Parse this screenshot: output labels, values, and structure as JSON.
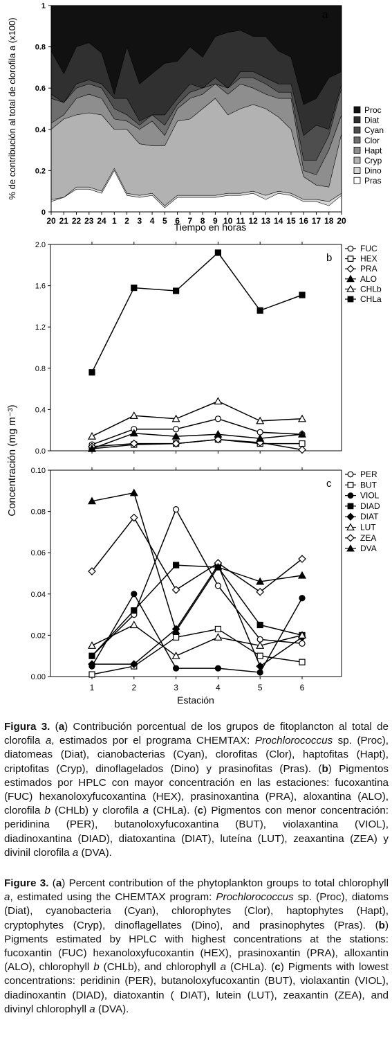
{
  "chart_data": [
    {
      "id": "a",
      "type": "area",
      "panel_label": "a",
      "xlabel": "Tiempo en horas",
      "ylabel": "% de contribución al total de clorofila a (x100)",
      "x_ticks": [
        "20",
        "21",
        "22",
        "23",
        "24",
        "1",
        "2",
        "3",
        "4",
        "5",
        "6",
        "7",
        "8",
        "9",
        "10",
        "11",
        "12",
        "13",
        "14",
        "15",
        "16",
        "17",
        "18",
        "20"
      ],
      "y_ticks": [
        "0",
        "0.2",
        "0.4",
        "0.6",
        "0.8",
        "1"
      ],
      "ylim": [
        0,
        1
      ],
      "legend": [
        "Proc",
        "Diat",
        "Cyan",
        "Clor",
        "Hapt",
        "Cryp",
        "Dino",
        "Pras"
      ],
      "colors": [
        "#111111",
        "#303030",
        "#4e4e4e",
        "#6e6e6e",
        "#8e8e8e",
        "#b2b2b2",
        "#d6d6d6",
        "#ffffff"
      ],
      "cumulative_upper": {
        "Pras": [
          0.05,
          0.07,
          0.11,
          0.11,
          0.09,
          0.2,
          0.08,
          0.07,
          0.08,
          0.02,
          0.07,
          0.07,
          0.07,
          0.07,
          0.08,
          0.08,
          0.09,
          0.06,
          0.09,
          0.08,
          0.05,
          0.05,
          0.03,
          0.08
        ],
        "Dino": [
          0.06,
          0.07,
          0.12,
          0.12,
          0.1,
          0.21,
          0.09,
          0.08,
          0.09,
          0.03,
          0.08,
          0.08,
          0.08,
          0.08,
          0.09,
          0.09,
          0.1,
          0.08,
          0.1,
          0.09,
          0.06,
          0.06,
          0.05,
          0.09
        ],
        "Cryp": [
          0.4,
          0.45,
          0.47,
          0.48,
          0.47,
          0.4,
          0.4,
          0.33,
          0.32,
          0.32,
          0.44,
          0.45,
          0.5,
          0.55,
          0.47,
          0.5,
          0.52,
          0.5,
          0.46,
          0.4,
          0.17,
          0.13,
          0.12,
          0.38
        ],
        "Hapt": [
          0.43,
          0.47,
          0.55,
          0.57,
          0.55,
          0.45,
          0.44,
          0.4,
          0.44,
          0.37,
          0.5,
          0.55,
          0.57,
          0.62,
          0.57,
          0.62,
          0.6,
          0.57,
          0.55,
          0.55,
          0.2,
          0.18,
          0.3,
          0.47
        ],
        "Clor": [
          0.55,
          0.53,
          0.6,
          0.62,
          0.6,
          0.5,
          0.47,
          0.42,
          0.47,
          0.42,
          0.52,
          0.58,
          0.6,
          0.62,
          0.6,
          0.65,
          0.65,
          0.62,
          0.58,
          0.58,
          0.25,
          0.25,
          0.37,
          0.6
        ],
        "Cyan": [
          0.57,
          0.53,
          0.62,
          0.64,
          0.62,
          0.55,
          0.55,
          0.44,
          0.47,
          0.47,
          0.55,
          0.62,
          0.6,
          0.65,
          0.6,
          0.68,
          0.68,
          0.65,
          0.62,
          0.62,
          0.37,
          0.42,
          0.4,
          0.62
        ],
        "Diat": [
          0.78,
          0.67,
          0.8,
          0.82,
          0.77,
          0.57,
          0.8,
          0.62,
          0.67,
          0.72,
          0.73,
          0.8,
          0.75,
          0.85,
          0.87,
          0.88,
          0.85,
          0.85,
          0.78,
          0.75,
          0.52,
          0.55,
          0.65,
          0.68
        ],
        "Proc": [
          1,
          1,
          1,
          1,
          1,
          1,
          1,
          1,
          1,
          1,
          1,
          1,
          1,
          1,
          1,
          1,
          1,
          1,
          1,
          1,
          1,
          1,
          1,
          1
        ]
      }
    },
    {
      "id": "b",
      "type": "line",
      "panel_label": "b",
      "x": [
        1,
        2,
        3,
        4,
        5,
        6
      ],
      "ylim": [
        0,
        2.0
      ],
      "y_ticks": [
        "0.0",
        "0.4",
        "0.8",
        "1.2",
        "1.6",
        "2.0"
      ],
      "series": [
        {
          "name": "FUC",
          "marker": "circle-open",
          "values": [
            0.06,
            0.21,
            0.21,
            0.31,
            0.18,
            0.16
          ]
        },
        {
          "name": "HEX",
          "marker": "square-open",
          "values": [
            0.02,
            0.06,
            0.07,
            0.11,
            0.07,
            0.07
          ]
        },
        {
          "name": "PRA",
          "marker": "diamond-open",
          "values": [
            0.04,
            0.07,
            0.07,
            0.11,
            0.08,
            0.01
          ]
        },
        {
          "name": "ALO",
          "marker": "triangle-filled",
          "values": [
            0.02,
            0.17,
            0.14,
            0.16,
            0.12,
            0.16
          ]
        },
        {
          "name": "CHLb",
          "marker": "triangle-open",
          "values": [
            0.14,
            0.34,
            0.31,
            0.48,
            0.29,
            0.31
          ]
        },
        {
          "name": "CHLa",
          "marker": "square-filled",
          "values": [
            0.76,
            1.58,
            1.55,
            1.92,
            1.36,
            1.51
          ]
        }
      ]
    },
    {
      "id": "c",
      "type": "line",
      "panel_label": "c",
      "x": [
        1,
        2,
        3,
        4,
        5,
        6
      ],
      "xlabel": "Estación",
      "ylim": [
        0,
        0.1
      ],
      "y_ticks": [
        "0.00",
        "0.02",
        "0.04",
        "0.06",
        "0.08",
        "0.10"
      ],
      "series": [
        {
          "name": "PER",
          "marker": "circle-open",
          "values": [
            0.01,
            0.03,
            0.081,
            0.044,
            0.018,
            0.016
          ]
        },
        {
          "name": "BUT",
          "marker": "square-open",
          "values": [
            0.001,
            0.005,
            0.019,
            0.023,
            0.01,
            0.007
          ]
        },
        {
          "name": "VIOL",
          "marker": "circle-filled",
          "values": [
            0.005,
            0.04,
            0.004,
            0.004,
            0.002,
            0.038
          ]
        },
        {
          "name": "DIAD",
          "marker": "square-filled",
          "values": [
            0.01,
            0.032,
            0.054,
            0.053,
            0.025,
            0.02
          ]
        },
        {
          "name": "DIAT",
          "marker": "diamond-filled",
          "values": [
            0.006,
            0.006,
            0.023,
            0.054,
            0.005,
            0.019
          ]
        },
        {
          "name": "LUT",
          "marker": "triangle-open",
          "values": [
            0.015,
            0.025,
            0.01,
            0.019,
            0.015,
            0.02
          ]
        },
        {
          "name": "ZEA",
          "marker": "diamond-open",
          "values": [
            0.051,
            0.077,
            0.042,
            0.055,
            0.041,
            0.057
          ]
        },
        {
          "name": "DVA",
          "marker": "triangle-filled",
          "values": [
            0.085,
            0.089,
            0.022,
            0.053,
            0.046,
            0.049
          ]
        }
      ]
    }
  ],
  "shared_ylabel": "Concentración (mg m⁻³)",
  "caption_es": {
    "fig": "Figura 3.",
    "a": "a",
    "b": "b",
    "c": "c",
    "t1": " Contribución porcentual de los grupos de fitoplancton al total de clorofila ",
    "t1i": "a",
    "t2": ", estimados por el programa CHEMTAX: ",
    "t2i": "Prochlorococcus",
    "t3": " sp. (Proc), diatomeas (Diat), cianobacterias (Cyan), clorofitas (Clor), haptofitas (Hapt), criptofitas (Cryp), dinoflagelados (Dino) y prasinofitas (Pras). ",
    "t4": " Pigmentos estimados por HPLC con mayor concentración en las estaciones: fucoxantina (FUC) hexanoloxyfucoxantina (HEX), prasinoxantina (PRA), aloxantina (ALO), clorofila ",
    "t4i": "b",
    "t5": " (CHLb) y clorofila ",
    "t5i": "a",
    "t6": " (CHLa). ",
    "t7": " Pigmentos con menor concentración: peridinina (PER), butanoloxyfucoxantina (BUT), violaxantina (VIOL), diadinoxantina (DIAD), diatoxantina (DIAT), luteína (LUT), zeaxantina (ZEA) y divinil clorofila ",
    "t7i": "a",
    "t8": " (DVA)."
  },
  "caption_en": {
    "fig": "Figure 3.",
    "a": "a",
    "b": "b",
    "c": "c",
    "t1": " Percent contribution of the phytoplankton groups to total chlorophyll ",
    "t1i": "a",
    "t2": ", estimated using the CHEMTAX program: ",
    "t2i": "Prochlorococcus",
    "t3": " sp. (Proc), diatoms (Diat), cyanobacteria (Cyan), chlorophytes (Clor), haptophytes (Hapt), cryptophytes (Cryp), dinoflagellates (Dino), and prasinophytes (Pras). ",
    "t4": " Pigments estimated by HPLC with highest concentrations at the stations: fucoxantin (FUC) hexanoloxyfucoxantin (HEX), prasinoxantin (PRA), alloxantin (ALO), chlorophyll ",
    "t4i": "b",
    "t5": " (CHLb), and chlorophyll ",
    "t5i": "a",
    "t6": " (CHLa). ",
    "t7": " Pigments with lowest concentrations: peridinin (PER), butanoloxyfucoxantin (BUT), violaxantin (VIOL), diadinoxantin (DIAD), diatoxantin ( DIAT), lutein (LUT), zeaxantin (ZEA), and divinyl chlorophyll ",
    "t7i": "a",
    "t8": " (DVA)."
  }
}
